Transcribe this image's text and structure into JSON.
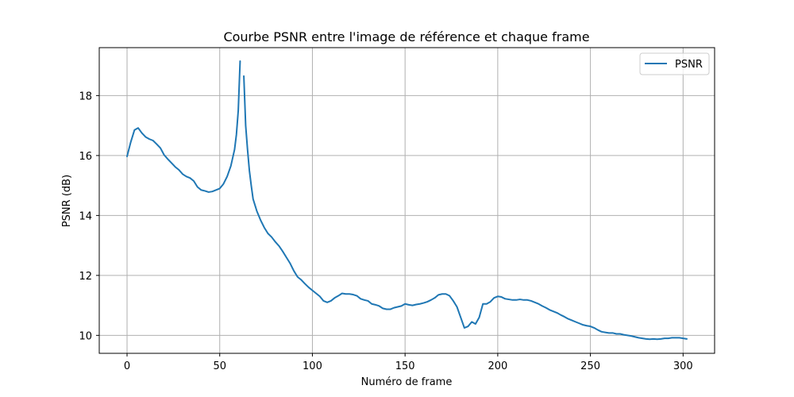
{
  "chart_data": {
    "type": "line",
    "title": "Courbe PSNR entre l'image de référence et chaque frame",
    "xlabel": "Numéro de frame",
    "ylabel": "PSNR (dB)",
    "xlim": [
      -15,
      317
    ],
    "ylim": [
      9.4,
      19.6
    ],
    "xticks": [
      0,
      50,
      100,
      150,
      200,
      250,
      300
    ],
    "yticks": [
      10,
      12,
      14,
      16,
      18
    ],
    "grid": true,
    "legend_position": "top-right",
    "colors": {
      "series": "#1f77b4",
      "grid": "#b0b0b0",
      "axes": "#000000"
    },
    "series": [
      {
        "name": "PSNR",
        "segments": [
          [
            [
              0,
              15.97
            ],
            [
              2,
              16.45
            ],
            [
              4,
              16.85
            ],
            [
              6,
              16.92
            ],
            [
              8,
              16.75
            ],
            [
              10,
              16.62
            ],
            [
              12,
              16.55
            ],
            [
              14,
              16.5
            ],
            [
              16,
              16.38
            ],
            [
              18,
              16.25
            ],
            [
              20,
              16.02
            ],
            [
              22,
              15.88
            ],
            [
              24,
              15.75
            ],
            [
              26,
              15.62
            ],
            [
              28,
              15.52
            ],
            [
              30,
              15.38
            ],
            [
              32,
              15.3
            ],
            [
              34,
              15.25
            ],
            [
              36,
              15.15
            ],
            [
              38,
              14.95
            ],
            [
              40,
              14.85
            ],
            [
              42,
              14.82
            ],
            [
              44,
              14.78
            ],
            [
              46,
              14.8
            ],
            [
              48,
              14.85
            ],
            [
              50,
              14.9
            ],
            [
              52,
              15.05
            ],
            [
              54,
              15.3
            ],
            [
              56,
              15.65
            ],
            [
              58,
              16.2
            ],
            [
              59,
              16.7
            ],
            [
              60,
              17.5
            ],
            [
              61,
              19.15
            ]
          ],
          [
            [
              63,
              18.65
            ],
            [
              64,
              17.0
            ],
            [
              65,
              16.2
            ],
            [
              66,
              15.5
            ],
            [
              67,
              15.0
            ],
            [
              68,
              14.55
            ],
            [
              70,
              14.15
            ],
            [
              72,
              13.85
            ],
            [
              74,
              13.6
            ],
            [
              76,
              13.4
            ],
            [
              78,
              13.28
            ],
            [
              80,
              13.12
            ],
            [
              82,
              12.98
            ],
            [
              84,
              12.8
            ],
            [
              86,
              12.6
            ],
            [
              88,
              12.4
            ],
            [
              90,
              12.15
            ],
            [
              92,
              11.95
            ],
            [
              94,
              11.85
            ],
            [
              96,
              11.72
            ],
            [
              98,
              11.6
            ],
            [
              100,
              11.5
            ],
            [
              102,
              11.4
            ],
            [
              104,
              11.3
            ],
            [
              106,
              11.15
            ],
            [
              108,
              11.1
            ],
            [
              110,
              11.15
            ],
            [
              112,
              11.25
            ],
            [
              114,
              11.32
            ],
            [
              116,
              11.4
            ],
            [
              118,
              11.38
            ],
            [
              120,
              11.38
            ],
            [
              122,
              11.36
            ],
            [
              124,
              11.32
            ],
            [
              126,
              11.22
            ],
            [
              128,
              11.18
            ],
            [
              130,
              11.15
            ],
            [
              132,
              11.05
            ],
            [
              134,
              11.02
            ],
            [
              136,
              10.98
            ],
            [
              138,
              10.9
            ],
            [
              140,
              10.87
            ],
            [
              142,
              10.87
            ],
            [
              144,
              10.92
            ],
            [
              146,
              10.95
            ],
            [
              148,
              10.98
            ],
            [
              150,
              11.05
            ],
            [
              152,
              11.02
            ],
            [
              154,
              11.0
            ],
            [
              156,
              11.03
            ],
            [
              158,
              11.05
            ],
            [
              160,
              11.08
            ],
            [
              162,
              11.12
            ],
            [
              164,
              11.18
            ],
            [
              166,
              11.25
            ],
            [
              168,
              11.35
            ],
            [
              170,
              11.38
            ],
            [
              172,
              11.38
            ],
            [
              174,
              11.32
            ],
            [
              176,
              11.15
            ],
            [
              178,
              10.95
            ],
            [
              180,
              10.6
            ],
            [
              182,
              10.25
            ],
            [
              184,
              10.3
            ],
            [
              186,
              10.45
            ],
            [
              188,
              10.38
            ],
            [
              190,
              10.6
            ],
            [
              192,
              11.05
            ],
            [
              194,
              11.05
            ],
            [
              196,
              11.12
            ],
            [
              198,
              11.25
            ],
            [
              200,
              11.3
            ],
            [
              202,
              11.28
            ],
            [
              204,
              11.22
            ],
            [
              206,
              11.2
            ],
            [
              208,
              11.18
            ],
            [
              210,
              11.18
            ],
            [
              212,
              11.2
            ],
            [
              214,
              11.18
            ],
            [
              216,
              11.18
            ],
            [
              218,
              11.15
            ],
            [
              220,
              11.1
            ],
            [
              222,
              11.05
            ],
            [
              224,
              10.98
            ],
            [
              226,
              10.92
            ],
            [
              228,
              10.85
            ],
            [
              230,
              10.8
            ],
            [
              232,
              10.75
            ],
            [
              234,
              10.68
            ],
            [
              236,
              10.62
            ],
            [
              238,
              10.55
            ],
            [
              240,
              10.5
            ],
            [
              242,
              10.45
            ],
            [
              244,
              10.4
            ],
            [
              246,
              10.35
            ],
            [
              248,
              10.32
            ],
            [
              250,
              10.3
            ],
            [
              252,
              10.25
            ],
            [
              254,
              10.18
            ],
            [
              256,
              10.12
            ],
            [
              258,
              10.1
            ],
            [
              260,
              10.08
            ],
            [
              262,
              10.08
            ],
            [
              264,
              10.05
            ],
            [
              266,
              10.05
            ],
            [
              268,
              10.02
            ],
            [
              270,
              10.0
            ],
            [
              272,
              9.98
            ],
            [
              274,
              9.95
            ],
            [
              276,
              9.92
            ],
            [
              278,
              9.9
            ],
            [
              280,
              9.88
            ],
            [
              282,
              9.87
            ],
            [
              284,
              9.88
            ],
            [
              286,
              9.87
            ],
            [
              288,
              9.88
            ],
            [
              290,
              9.9
            ],
            [
              292,
              9.9
            ],
            [
              294,
              9.92
            ],
            [
              296,
              9.92
            ],
            [
              298,
              9.92
            ],
            [
              300,
              9.9
            ],
            [
              302,
              9.88
            ]
          ]
        ]
      }
    ]
  }
}
